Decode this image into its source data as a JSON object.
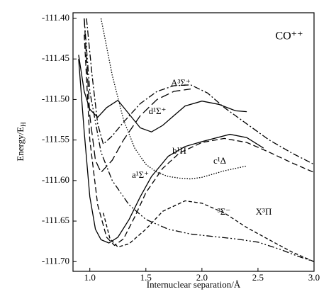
{
  "chart_data": {
    "type": "line",
    "title": "CO⁺⁺",
    "xlabel": "Internuclear separation/Å",
    "ylabel": "Energy/E",
    "ylabel_subscript": "H",
    "xlim": [
      0.85,
      3.0
    ],
    "ylim": [
      -111.712,
      -111.393
    ],
    "xticks": [
      {
        "value": 1,
        "label": "1.0"
      },
      {
        "value": 1.5,
        "label": "1.5"
      },
      {
        "value": 2,
        "label": "2.0"
      },
      {
        "value": 2.5,
        "label": "2.5"
      },
      {
        "value": 3,
        "label": "3.0"
      }
    ],
    "yticks": [
      {
        "value": -111.4,
        "label": "-111.40"
      },
      {
        "value": -111.45,
        "label": "-111.45"
      },
      {
        "value": -111.5,
        "label": "-111.50"
      },
      {
        "value": -111.55,
        "label": "-111.55"
      },
      {
        "value": -111.6,
        "label": "-111.60"
      },
      {
        "value": -111.65,
        "label": "-111.65"
      },
      {
        "value": -111.7,
        "label": "-111.70"
      }
    ],
    "grid": false,
    "series": [
      {
        "color": "#000000",
        "style": "dashdot",
        "x": [
          0.97,
          1.02,
          1.07,
          1.12,
          1.2,
          1.3,
          1.45,
          1.6,
          1.75,
          1.9,
          2.05,
          2.2,
          2.4,
          2.6,
          2.8,
          3.0
        ],
        "values": [
          -111.4,
          -111.47,
          -111.53,
          -111.555,
          -111.545,
          -111.528,
          -111.505,
          -111.49,
          -111.483,
          -111.482,
          -111.492,
          -111.51,
          -111.53,
          -111.55,
          -111.566,
          -111.58
        ]
      },
      {
        "color": "#000000",
        "style": "solid",
        "x": [
          0.9,
          0.95,
          1.0,
          1.07,
          1.15,
          1.25,
          1.35,
          1.45,
          1.55,
          1.65,
          1.75,
          1.85,
          2.0,
          2.15,
          2.3,
          2.4
        ],
        "values": [
          -111.445,
          -111.49,
          -111.512,
          -111.522,
          -111.51,
          -111.501,
          -111.518,
          -111.535,
          -111.54,
          -111.532,
          -111.52,
          -111.508,
          -111.502,
          -111.506,
          -111.514,
          -111.515
        ]
      },
      {
        "color": "#000000",
        "style": "longdash",
        "x": [
          0.95,
          1.0,
          1.05,
          1.1,
          1.2,
          1.3,
          1.45,
          1.6,
          1.75,
          1.9
        ],
        "values": [
          -111.4,
          -111.52,
          -111.575,
          -111.59,
          -111.575,
          -111.55,
          -111.52,
          -111.5,
          -111.49,
          -111.487
        ]
      },
      {
        "color": "#000000",
        "style": "solid",
        "x": [
          0.9,
          0.95,
          1.0,
          1.05,
          1.1,
          1.17,
          1.25,
          1.35,
          1.45,
          1.55,
          1.7,
          1.85,
          2.0,
          2.25,
          2.4,
          2.55
        ],
        "values": [
          -111.45,
          -111.54,
          -111.62,
          -111.66,
          -111.673,
          -111.677,
          -111.67,
          -111.648,
          -111.62,
          -111.595,
          -111.57,
          -111.558,
          -111.552,
          -111.543,
          -111.547,
          -111.56
        ]
      },
      {
        "color": "#000000",
        "style": "dashed",
        "x": [
          0.95,
          1.0,
          1.07,
          1.15,
          1.22,
          1.3,
          1.4,
          1.5,
          1.65,
          1.8,
          2.0,
          2.2,
          2.4,
          2.6,
          2.8,
          3.0
        ],
        "values": [
          -111.42,
          -111.55,
          -111.63,
          -111.67,
          -111.68,
          -111.672,
          -111.645,
          -111.615,
          -111.585,
          -111.566,
          -111.553,
          -111.548,
          -111.553,
          -111.565,
          -111.578,
          -111.59
        ]
      },
      {
        "color": "#000000",
        "style": "dotted",
        "x": [
          1.1,
          1.2,
          1.3,
          1.4,
          1.5,
          1.6,
          1.7,
          1.8,
          1.9,
          2.0,
          2.2,
          2.4
        ],
        "values": [
          -111.4,
          -111.47,
          -111.525,
          -111.56,
          -111.58,
          -111.59,
          -111.595,
          -111.597,
          -111.598,
          -111.596,
          -111.588,
          -111.582
        ]
      },
      {
        "color": "#000000",
        "style": "dashdotdot",
        "x": [
          0.95,
          1.0,
          1.1,
          1.2,
          1.35,
          1.5,
          1.7,
          1.9,
          2.1,
          2.3,
          2.5,
          2.7,
          2.85,
          3.0
        ],
        "values": [
          -111.4,
          -111.49,
          -111.565,
          -111.6,
          -111.63,
          -111.648,
          -111.66,
          -111.666,
          -111.669,
          -111.672,
          -111.676,
          -111.685,
          -111.693,
          -111.7
        ]
      },
      {
        "color": "#000000",
        "style": "shortdash",
        "x": [
          1.12,
          1.18,
          1.25,
          1.35,
          1.5,
          1.65,
          1.85,
          2.0,
          2.2,
          2.4,
          2.6,
          2.8,
          3.0
        ],
        "values": [
          -111.64,
          -111.672,
          -111.682,
          -111.678,
          -111.66,
          -111.638,
          -111.625,
          -111.628,
          -111.64,
          -111.658,
          -111.673,
          -111.688,
          -111.7
        ]
      }
    ],
    "annotations": [
      "A³Σ⁺",
      "d¹Σ⁺",
      "b¹Π",
      "c¹Δ",
      "a¹Σ⁺",
      "³Σ⁻",
      "X³Π"
    ]
  }
}
